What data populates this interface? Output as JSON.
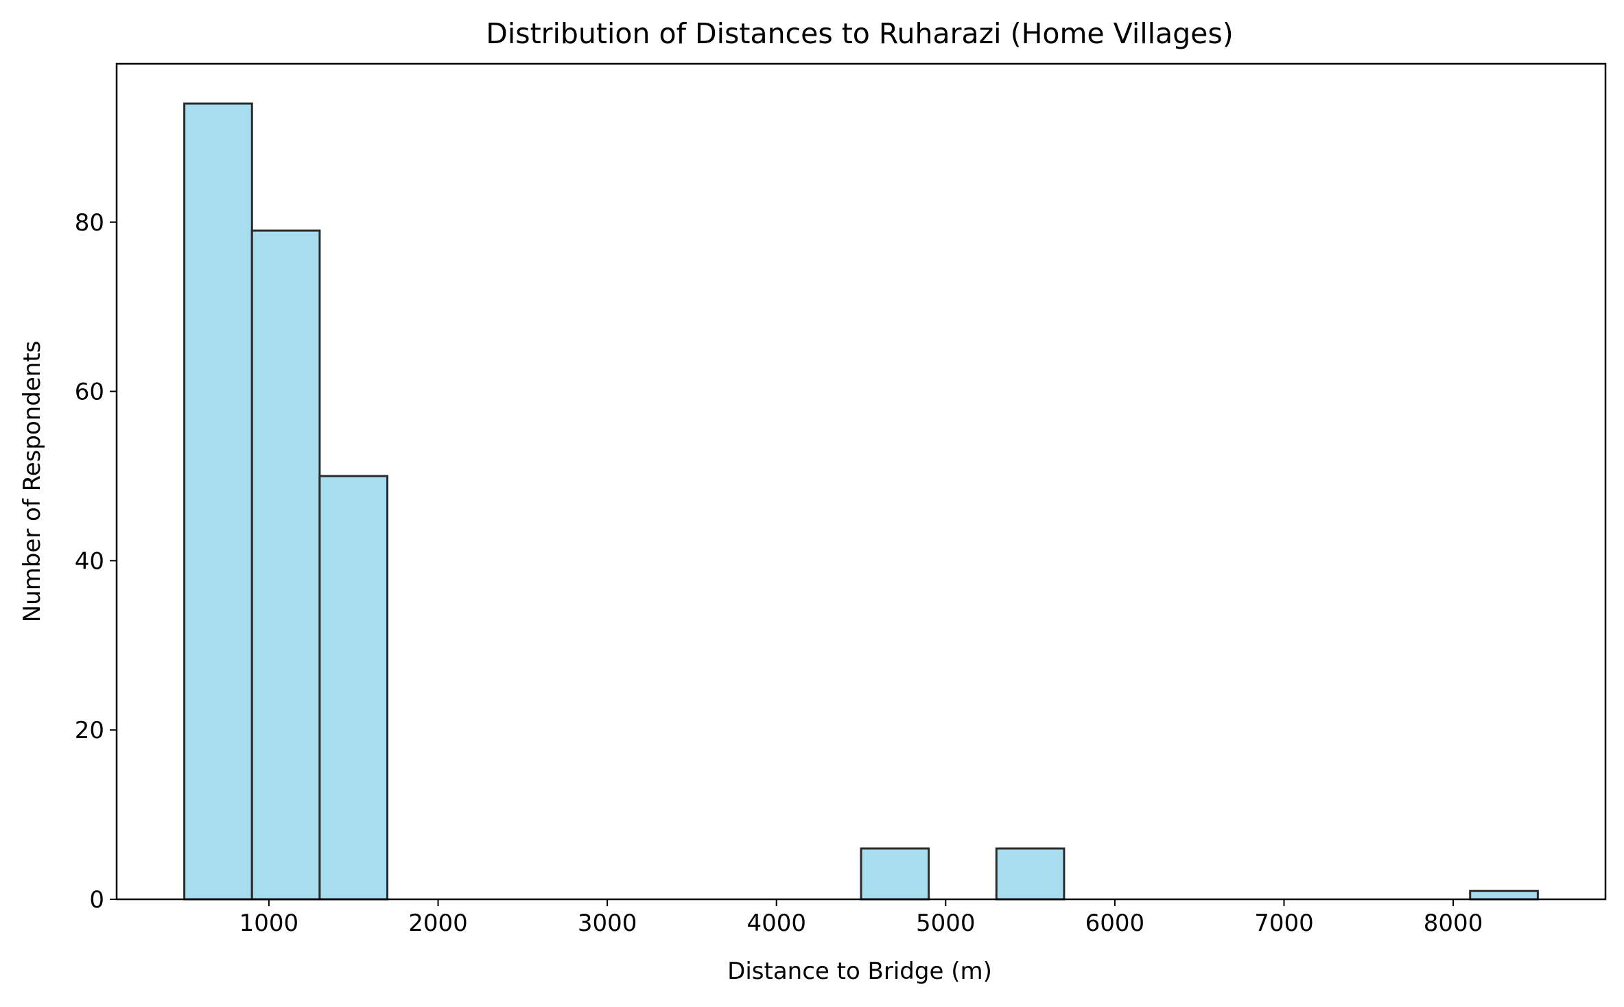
{
  "chart_data": {
    "type": "histogram",
    "title": "Distribution of Distances to Ruharazi (Home Villages)",
    "xlabel": "Distance to Bridge (m)",
    "ylabel": "Number of Respondents",
    "xlim": [
      100,
      8900
    ],
    "ylim": [
      0,
      98.7
    ],
    "xticks": [
      1000,
      2000,
      3000,
      4000,
      5000,
      6000,
      7000,
      8000
    ],
    "xtick_labels": [
      "1000",
      "2000",
      "3000",
      "4000",
      "5000",
      "6000",
      "7000",
      "8000"
    ],
    "yticks": [
      0,
      20,
      40,
      60,
      80
    ],
    "ytick_labels": [
      "0",
      "20",
      "40",
      "60",
      "80"
    ],
    "bin_edges": [
      500,
      900,
      1300,
      1700,
      2100,
      2500,
      2900,
      3300,
      3700,
      4100,
      4500,
      4900,
      5300,
      5700,
      6100,
      6500,
      6900,
      7300,
      7700,
      8100,
      8500
    ],
    "counts": [
      94,
      79,
      50,
      0,
      0,
      0,
      0,
      0,
      0,
      0,
      6,
      0,
      6,
      0,
      0,
      0,
      0,
      0,
      0,
      1
    ],
    "bar_color": "#a8dcef",
    "edge_color": "#2b2b2b",
    "grid": false,
    "legend": "none"
  }
}
